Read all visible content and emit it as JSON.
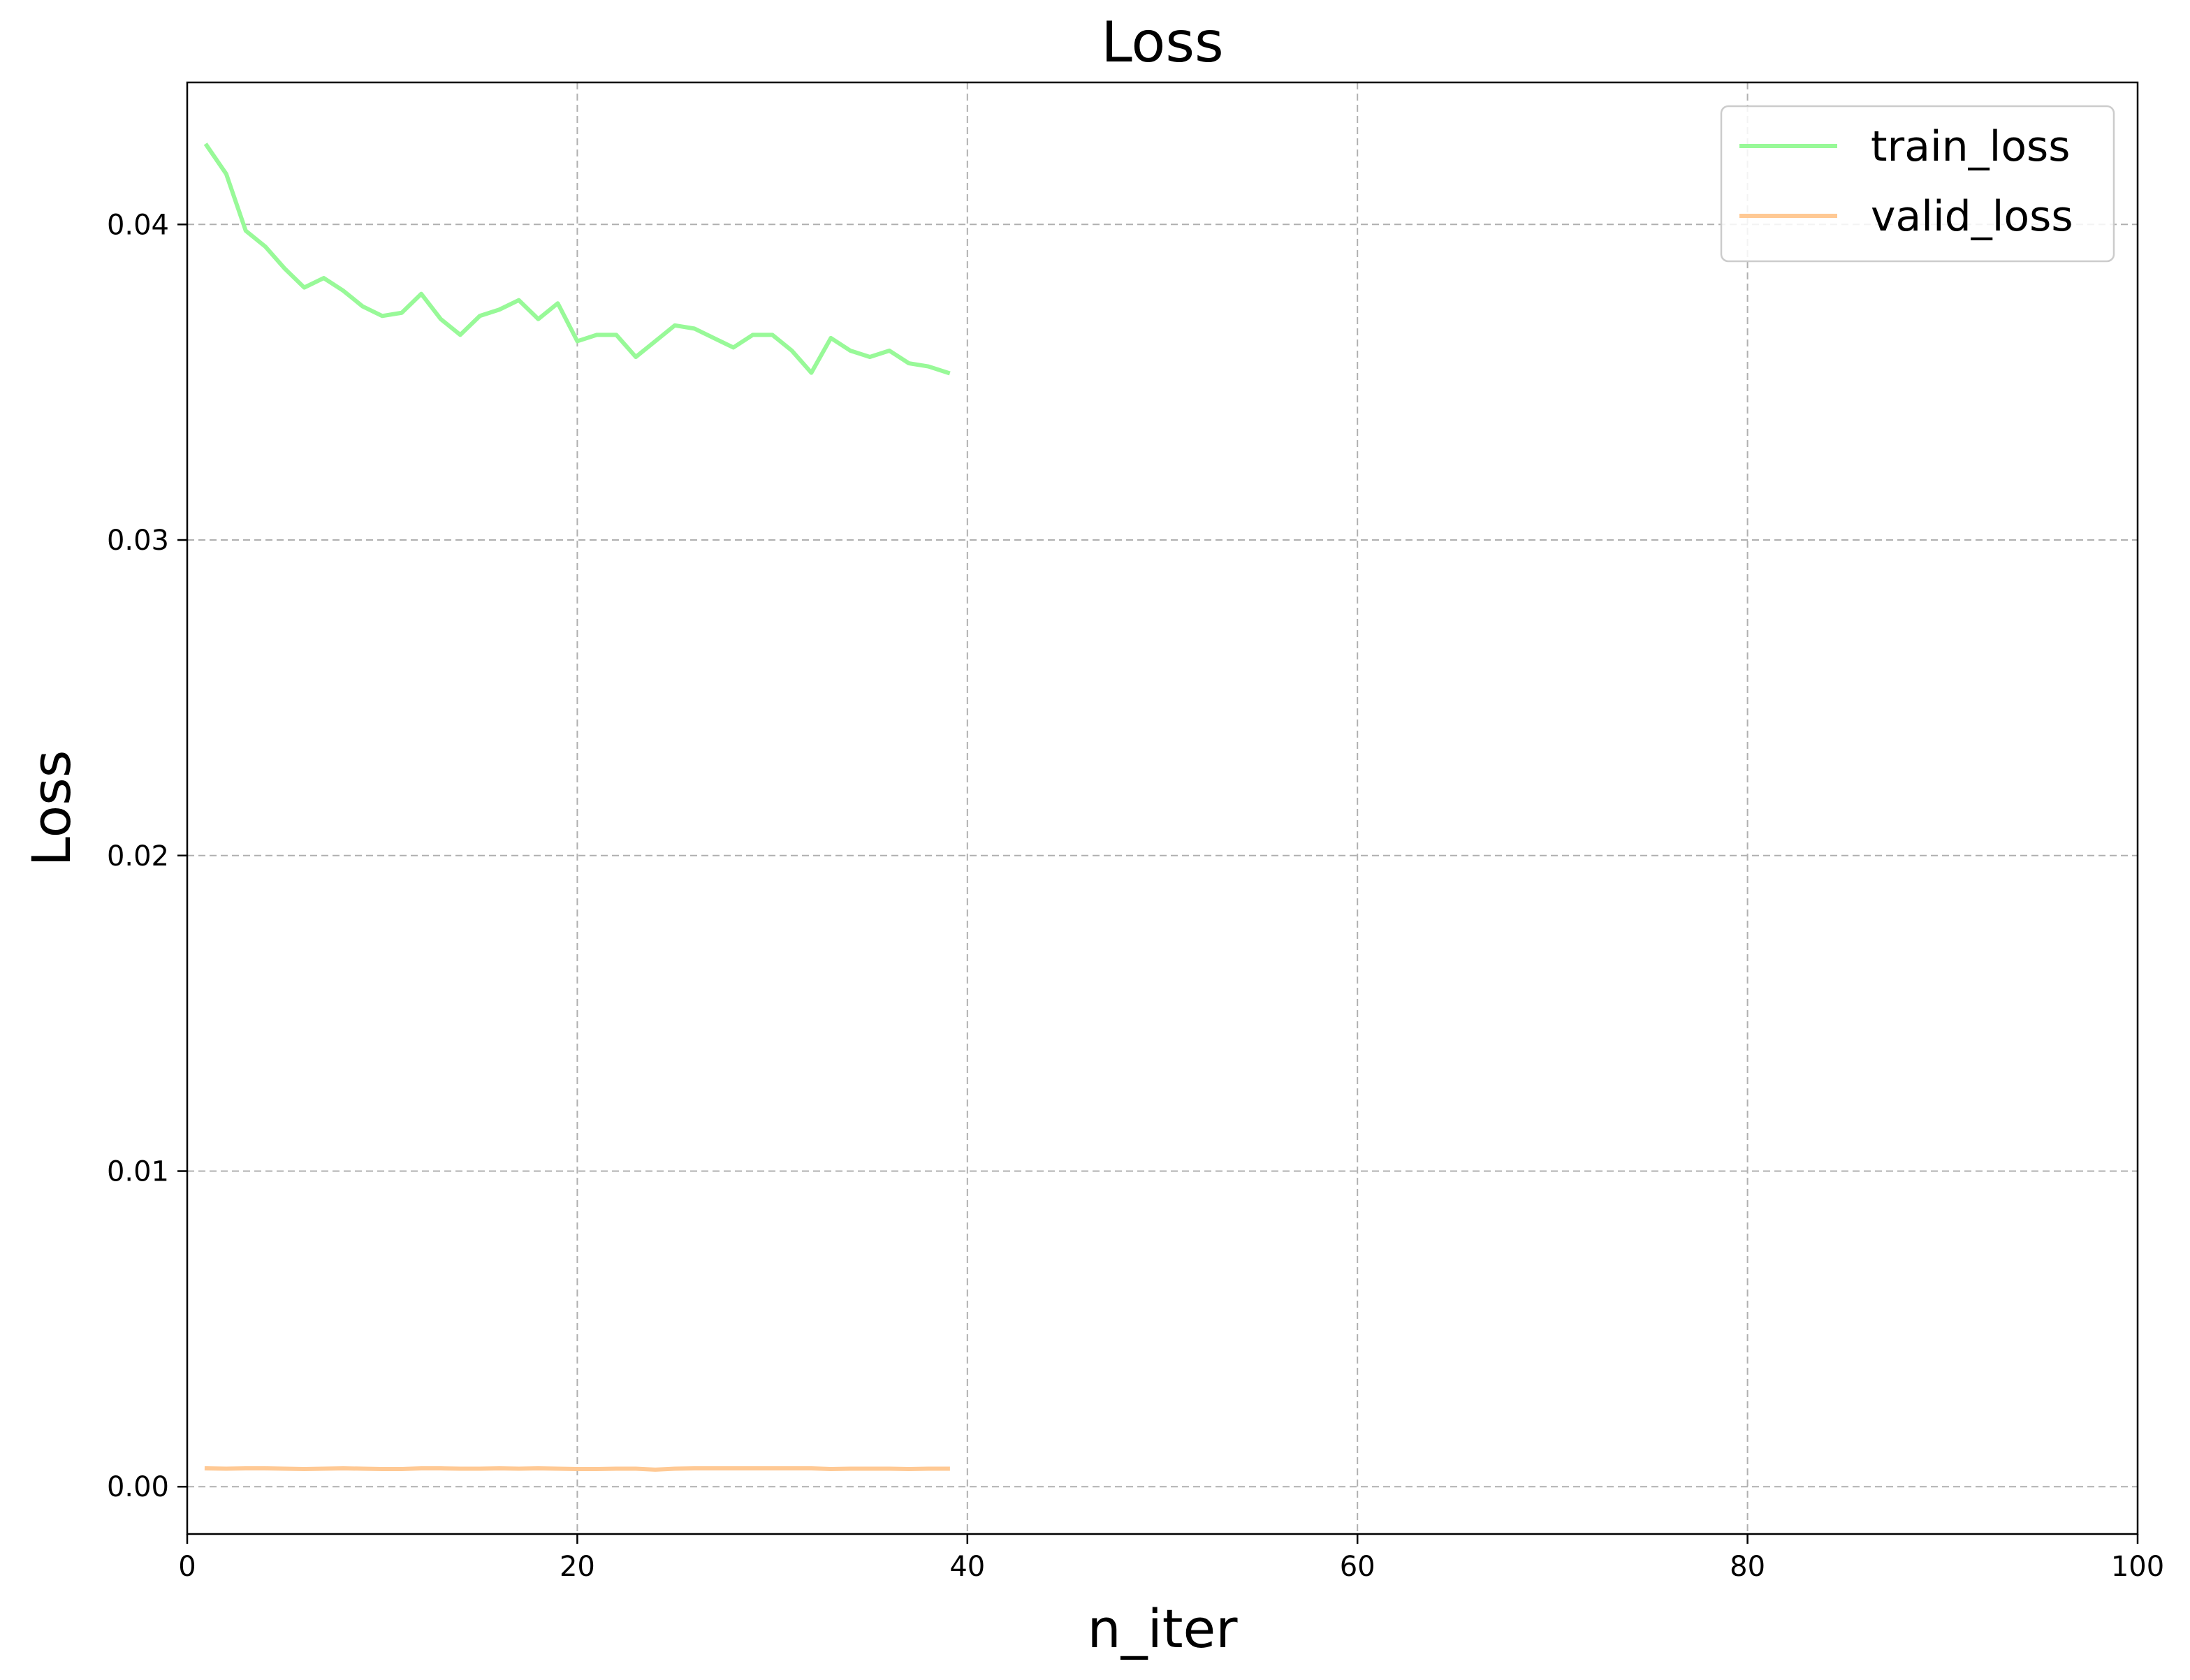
{
  "chart_data": {
    "type": "line",
    "title": "Loss",
    "xlabel": "n_iter",
    "ylabel": "Loss",
    "xlim": [
      0,
      100
    ],
    "ylim": [
      -0.0015,
      0.0445
    ],
    "x_ticks": [
      0,
      20,
      40,
      60,
      80,
      100
    ],
    "x_tick_labels": [
      "0",
      "20",
      "40",
      "60",
      "80",
      "100"
    ],
    "y_ticks": [
      0.0,
      0.01,
      0.02,
      0.03,
      0.04
    ],
    "y_tick_labels": [
      "0.00",
      "0.01",
      "0.02",
      "0.03",
      "0.04"
    ],
    "grid": true,
    "legend_position": "top-right",
    "x": [
      1,
      2,
      3,
      4,
      5,
      6,
      7,
      8,
      9,
      10,
      11,
      12,
      13,
      14,
      15,
      16,
      17,
      18,
      19,
      20,
      21,
      22,
      23,
      24,
      25,
      26,
      27,
      28,
      29,
      30,
      31,
      32,
      33,
      34,
      35,
      36,
      37,
      38,
      39
    ],
    "series": [
      {
        "name": "train_loss",
        "color": "#98f998",
        "values": [
          0.0425,
          0.0416,
          0.0398,
          0.0393,
          0.0386,
          0.038,
          0.0383,
          0.0379,
          0.0374,
          0.0371,
          0.0372,
          0.0378,
          0.037,
          0.0365,
          0.0371,
          0.0373,
          0.0376,
          0.037,
          0.0375,
          0.0363,
          0.0365,
          0.0365,
          0.0358,
          0.0363,
          0.0368,
          0.0367,
          0.0364,
          0.0361,
          0.0365,
          0.0365,
          0.036,
          0.0353,
          0.0364,
          0.036,
          0.0358,
          0.036,
          0.0356,
          0.0355,
          0.0353
        ]
      },
      {
        "name": "valid_loss",
        "color": "#ffc994",
        "values": [
          0.00058,
          0.00057,
          0.00058,
          0.00058,
          0.00057,
          0.00056,
          0.00057,
          0.00058,
          0.00057,
          0.00056,
          0.00056,
          0.00058,
          0.00058,
          0.00057,
          0.00057,
          0.00058,
          0.00057,
          0.00058,
          0.00057,
          0.00056,
          0.00056,
          0.00057,
          0.00057,
          0.00054,
          0.00057,
          0.00058,
          0.00058,
          0.00058,
          0.00058,
          0.00058,
          0.00058,
          0.00058,
          0.00056,
          0.00057,
          0.00057,
          0.00057,
          0.00056,
          0.00057,
          0.00057
        ]
      }
    ]
  }
}
